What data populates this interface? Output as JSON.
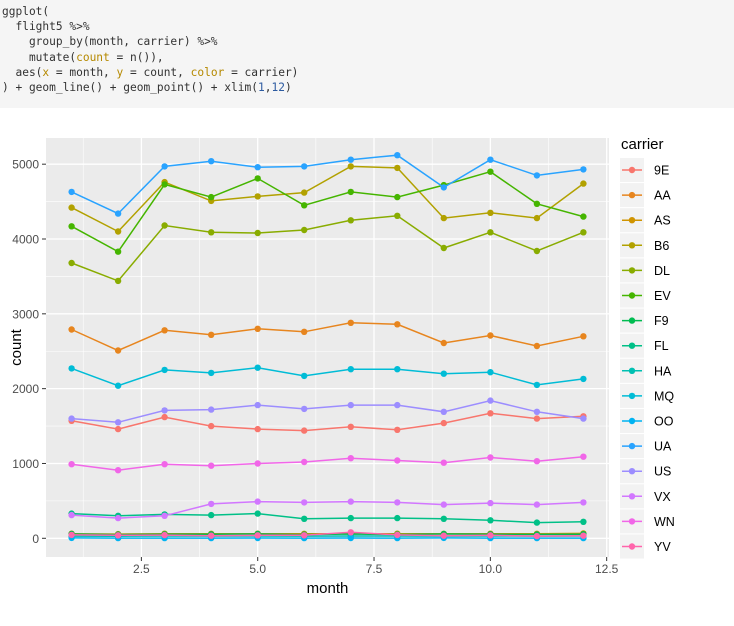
{
  "code": {
    "lines": [
      [
        {
          "t": "ggplot("
        }
      ],
      [
        {
          "t": "  flight5 %>%"
        }
      ],
      [
        {
          "t": "    group_by(month, carrier) %>%"
        }
      ],
      [
        {
          "t": "    mutate("
        },
        {
          "t": "count",
          "k": "arg"
        },
        {
          "t": " = n()),"
        }
      ],
      [
        {
          "t": "  aes("
        },
        {
          "t": "x",
          "k": "arg"
        },
        {
          "t": " = month, "
        },
        {
          "t": "y",
          "k": "arg"
        },
        {
          "t": " = count, "
        },
        {
          "t": "color",
          "k": "arg"
        },
        {
          "t": " = carrier)"
        }
      ],
      [
        {
          "t": ") + geom_line() + geom_point() + xlim("
        },
        {
          "t": "1",
          "k": "num"
        },
        {
          "t": ","
        },
        {
          "t": "12",
          "k": "num"
        },
        {
          "t": ")"
        }
      ]
    ]
  },
  "chart_data": {
    "type": "line",
    "xlabel": "month",
    "ylabel": "count",
    "xlim": [
      0.45,
      12.55
    ],
    "ylim": [
      -250,
      5350
    ],
    "x_ticks": [
      2.5,
      5.0,
      7.5,
      10.0,
      12.5
    ],
    "x_tick_labels": [
      "2.5",
      "5.0",
      "7.5",
      "10.0",
      "12.5"
    ],
    "y_ticks": [
      0,
      1000,
      2000,
      3000,
      4000,
      5000
    ],
    "y_tick_labels": [
      "0",
      "1000",
      "2000",
      "3000",
      "4000",
      "5000"
    ],
    "grid": true,
    "panel_background": "#ebebeb",
    "legend_title": "carrier",
    "legend_position": "right",
    "x": [
      1,
      2,
      3,
      4,
      5,
      6,
      7,
      8,
      9,
      10,
      11,
      12
    ],
    "series": [
      {
        "name": "9E",
        "color": "#F8766D",
        "values": [
          1570,
          1460,
          1620,
          1500,
          1460,
          1440,
          1490,
          1450,
          1540,
          1670,
          1600,
          1630
        ]
      },
      {
        "name": "AA",
        "color": "#E7851E",
        "values": [
          2790,
          2510,
          2780,
          2720,
          2800,
          2760,
          2880,
          2860,
          2610,
          2710,
          2570,
          2700
        ]
      },
      {
        "name": "AS",
        "color": "#D09400",
        "values": [
          62,
          56,
          62,
          60,
          62,
          60,
          62,
          62,
          60,
          62,
          60,
          65
        ]
      },
      {
        "name": "B6",
        "color": "#B2A100",
        "values": [
          4420,
          4100,
          4760,
          4510,
          4570,
          4620,
          4970,
          4950,
          4280,
          4350,
          4280,
          4740
        ]
      },
      {
        "name": "DL",
        "color": "#89AC00",
        "values": [
          3680,
          3440,
          4180,
          4090,
          4080,
          4120,
          4250,
          4310,
          3880,
          4090,
          3840,
          4090
        ]
      },
      {
        "name": "EV",
        "color": "#45B500",
        "values": [
          4170,
          3830,
          4730,
          4560,
          4810,
          4450,
          4630,
          4560,
          4720,
          4900,
          4470,
          4300
        ]
      },
      {
        "name": "F9",
        "color": "#00BC51",
        "values": [
          57,
          50,
          54,
          54,
          58,
          50,
          57,
          51,
          57,
          54,
          52,
          55
        ]
      },
      {
        "name": "FL",
        "color": "#00C087",
        "values": [
          330,
          300,
          320,
          310,
          330,
          260,
          270,
          270,
          260,
          240,
          210,
          220
        ]
      },
      {
        "name": "HA",
        "color": "#00C0B2",
        "values": [
          30,
          28,
          31,
          30,
          31,
          30,
          31,
          31,
          30,
          31,
          30,
          31
        ]
      },
      {
        "name": "MQ",
        "color": "#00BCD6",
        "values": [
          2270,
          2040,
          2250,
          2210,
          2280,
          2170,
          2260,
          2260,
          2200,
          2220,
          2050,
          2130
        ]
      },
      {
        "name": "OO",
        "color": "#00B3F2",
        "values": [
          5,
          2,
          3,
          2,
          4,
          2,
          4,
          2,
          5,
          3,
          2,
          3
        ]
      },
      {
        "name": "UA",
        "color": "#29A3FF",
        "values": [
          4630,
          4340,
          4970,
          5040,
          4960,
          4970,
          5060,
          5120,
          4690,
          5060,
          4850,
          4930
        ]
      },
      {
        "name": "US",
        "color": "#9C8DFF",
        "values": [
          1600,
          1550,
          1710,
          1720,
          1780,
          1730,
          1780,
          1780,
          1690,
          1840,
          1690,
          1600
        ]
      },
      {
        "name": "VX",
        "color": "#D277FF",
        "values": [
          310,
          270,
          300,
          460,
          490,
          480,
          490,
          480,
          450,
          470,
          450,
          480
        ]
      },
      {
        "name": "WN",
        "color": "#F166E8",
        "values": [
          990,
          910,
          990,
          970,
          1000,
          1020,
          1070,
          1040,
          1010,
          1080,
          1030,
          1090
        ]
      },
      {
        "name": "YV",
        "color": "#FF65AC",
        "values": [
          46,
          40,
          43,
          35,
          40,
          40,
          80,
          45,
          35,
          40,
          30,
          35
        ]
      }
    ]
  }
}
